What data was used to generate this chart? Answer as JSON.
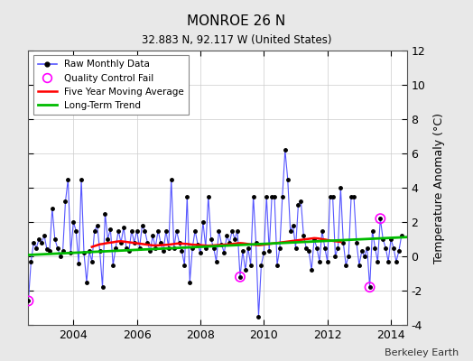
{
  "title": "MONROE 26 N",
  "subtitle": "32.883 N, 92.117 W (United States)",
  "ylabel": "Temperature Anomaly (°C)",
  "credit": "Berkeley Earth",
  "background_color": "#e8e8e8",
  "plot_bg_color": "#ffffff",
  "ylim": [
    -4,
    12
  ],
  "yticks": [
    -4,
    -2,
    0,
    2,
    4,
    6,
    8,
    10,
    12
  ],
  "start_year": 2002.583,
  "end_year": 2014.5,
  "xticks": [
    2004,
    2006,
    2008,
    2010,
    2012,
    2014
  ],
  "raw_color": "#5555ff",
  "raw_marker_color": "#000000",
  "ma_color": "#ff0000",
  "trend_color": "#00bb00",
  "qc_color": "#ff00ff",
  "raw_data": [
    [
      2002.583,
      -2.6
    ],
    [
      2002.667,
      -0.3
    ],
    [
      2002.75,
      0.8
    ],
    [
      2002.833,
      0.5
    ],
    [
      2002.917,
      1.0
    ],
    [
      2003.0,
      0.8
    ],
    [
      2003.083,
      1.2
    ],
    [
      2003.167,
      0.4
    ],
    [
      2003.25,
      0.3
    ],
    [
      2003.333,
      2.8
    ],
    [
      2003.417,
      1.0
    ],
    [
      2003.5,
      0.5
    ],
    [
      2003.583,
      0.0
    ],
    [
      2003.667,
      0.3
    ],
    [
      2003.75,
      3.2
    ],
    [
      2003.833,
      4.5
    ],
    [
      2003.917,
      0.2
    ],
    [
      2004.0,
      2.0
    ],
    [
      2004.083,
      1.5
    ],
    [
      2004.167,
      -0.4
    ],
    [
      2004.25,
      4.5
    ],
    [
      2004.333,
      0.2
    ],
    [
      2004.417,
      -1.5
    ],
    [
      2004.5,
      0.3
    ],
    [
      2004.583,
      -0.3
    ],
    [
      2004.667,
      1.5
    ],
    [
      2004.75,
      1.8
    ],
    [
      2004.833,
      0.3
    ],
    [
      2004.917,
      -1.8
    ],
    [
      2005.0,
      2.5
    ],
    [
      2005.083,
      1.0
    ],
    [
      2005.167,
      1.6
    ],
    [
      2005.25,
      -0.5
    ],
    [
      2005.333,
      0.5
    ],
    [
      2005.417,
      1.5
    ],
    [
      2005.5,
      0.8
    ],
    [
      2005.583,
      1.7
    ],
    [
      2005.667,
      0.5
    ],
    [
      2005.75,
      0.3
    ],
    [
      2005.833,
      1.5
    ],
    [
      2005.917,
      0.8
    ],
    [
      2006.0,
      1.5
    ],
    [
      2006.083,
      0.5
    ],
    [
      2006.167,
      1.8
    ],
    [
      2006.25,
      1.5
    ],
    [
      2006.333,
      0.8
    ],
    [
      2006.417,
      0.3
    ],
    [
      2006.5,
      1.2
    ],
    [
      2006.583,
      0.5
    ],
    [
      2006.667,
      1.5
    ],
    [
      2006.75,
      0.8
    ],
    [
      2006.833,
      0.3
    ],
    [
      2006.917,
      1.5
    ],
    [
      2007.0,
      0.5
    ],
    [
      2007.083,
      4.5
    ],
    [
      2007.167,
      0.5
    ],
    [
      2007.25,
      1.5
    ],
    [
      2007.333,
      0.8
    ],
    [
      2007.417,
      0.3
    ],
    [
      2007.5,
      -0.5
    ],
    [
      2007.583,
      3.5
    ],
    [
      2007.667,
      -1.5
    ],
    [
      2007.75,
      0.5
    ],
    [
      2007.833,
      1.5
    ],
    [
      2007.917,
      0.7
    ],
    [
      2008.0,
      0.2
    ],
    [
      2008.083,
      2.0
    ],
    [
      2008.167,
      0.5
    ],
    [
      2008.25,
      3.5
    ],
    [
      2008.333,
      1.0
    ],
    [
      2008.417,
      0.5
    ],
    [
      2008.5,
      -0.3
    ],
    [
      2008.583,
      1.5
    ],
    [
      2008.667,
      0.7
    ],
    [
      2008.75,
      0.2
    ],
    [
      2008.833,
      1.2
    ],
    [
      2008.917,
      0.8
    ],
    [
      2009.0,
      1.5
    ],
    [
      2009.083,
      1.0
    ],
    [
      2009.167,
      1.5
    ],
    [
      2009.25,
      -1.2
    ],
    [
      2009.333,
      0.3
    ],
    [
      2009.417,
      -0.8
    ],
    [
      2009.5,
      0.5
    ],
    [
      2009.583,
      -0.5
    ],
    [
      2009.667,
      3.5
    ],
    [
      2009.75,
      0.8
    ],
    [
      2009.833,
      -3.5
    ],
    [
      2009.917,
      -0.5
    ],
    [
      2010.0,
      0.2
    ],
    [
      2010.083,
      3.5
    ],
    [
      2010.167,
      0.3
    ],
    [
      2010.25,
      3.5
    ],
    [
      2010.333,
      3.5
    ],
    [
      2010.417,
      -0.5
    ],
    [
      2010.5,
      0.5
    ],
    [
      2010.583,
      3.5
    ],
    [
      2010.667,
      6.2
    ],
    [
      2010.75,
      4.5
    ],
    [
      2010.833,
      1.5
    ],
    [
      2010.917,
      1.8
    ],
    [
      2011.0,
      0.5
    ],
    [
      2011.083,
      3.0
    ],
    [
      2011.167,
      3.2
    ],
    [
      2011.25,
      1.2
    ],
    [
      2011.333,
      0.5
    ],
    [
      2011.417,
      0.3
    ],
    [
      2011.5,
      -0.8
    ],
    [
      2011.583,
      1.0
    ],
    [
      2011.667,
      0.5
    ],
    [
      2011.75,
      -0.3
    ],
    [
      2011.833,
      1.5
    ],
    [
      2011.917,
      0.5
    ],
    [
      2012.0,
      -0.3
    ],
    [
      2012.083,
      3.5
    ],
    [
      2012.167,
      3.5
    ],
    [
      2012.25,
      0.0
    ],
    [
      2012.333,
      0.5
    ],
    [
      2012.417,
      4.0
    ],
    [
      2012.5,
      0.8
    ],
    [
      2012.583,
      -0.5
    ],
    [
      2012.667,
      0.0
    ],
    [
      2012.75,
      3.5
    ],
    [
      2012.833,
      3.5
    ],
    [
      2012.917,
      0.8
    ],
    [
      2013.0,
      -0.5
    ],
    [
      2013.083,
      0.3
    ],
    [
      2013.167,
      0.0
    ],
    [
      2013.25,
      0.5
    ],
    [
      2013.333,
      -1.8
    ],
    [
      2013.417,
      1.5
    ],
    [
      2013.5,
      0.5
    ],
    [
      2013.583,
      -0.3
    ],
    [
      2013.667,
      2.2
    ],
    [
      2013.75,
      1.0
    ],
    [
      2013.833,
      0.5
    ],
    [
      2013.917,
      -0.3
    ],
    [
      2014.0,
      1.0
    ],
    [
      2014.083,
      0.5
    ],
    [
      2014.167,
      -0.3
    ],
    [
      2014.25,
      0.3
    ],
    [
      2014.333,
      1.2
    ]
  ],
  "qc_fail_points": [
    [
      2002.583,
      -2.6
    ],
    [
      2009.25,
      -1.2
    ],
    [
      2013.333,
      -1.8
    ],
    [
      2013.667,
      2.2
    ]
  ],
  "moving_avg": [
    [
      2004.583,
      0.55
    ],
    [
      2004.667,
      0.6
    ],
    [
      2004.75,
      0.65
    ],
    [
      2004.833,
      0.7
    ],
    [
      2004.917,
      0.72
    ],
    [
      2005.0,
      0.75
    ],
    [
      2005.083,
      0.78
    ],
    [
      2005.167,
      0.8
    ],
    [
      2005.25,
      0.82
    ],
    [
      2005.333,
      0.85
    ],
    [
      2005.417,
      0.87
    ],
    [
      2005.5,
      0.88
    ],
    [
      2005.583,
      0.86
    ],
    [
      2005.667,
      0.84
    ],
    [
      2005.75,
      0.82
    ],
    [
      2005.833,
      0.8
    ],
    [
      2005.917,
      0.78
    ],
    [
      2006.0,
      0.76
    ],
    [
      2006.083,
      0.74
    ],
    [
      2006.167,
      0.72
    ],
    [
      2006.25,
      0.7
    ],
    [
      2006.333,
      0.68
    ],
    [
      2006.417,
      0.66
    ],
    [
      2006.5,
      0.64
    ],
    [
      2006.583,
      0.63
    ],
    [
      2006.667,
      0.64
    ],
    [
      2006.75,
      0.65
    ],
    [
      2006.833,
      0.66
    ],
    [
      2006.917,
      0.67
    ],
    [
      2007.0,
      0.68
    ],
    [
      2007.083,
      0.7
    ],
    [
      2007.167,
      0.72
    ],
    [
      2007.25,
      0.74
    ],
    [
      2007.333,
      0.75
    ],
    [
      2007.417,
      0.74
    ],
    [
      2007.5,
      0.73
    ],
    [
      2007.583,
      0.72
    ],
    [
      2007.667,
      0.7
    ],
    [
      2007.75,
      0.68
    ],
    [
      2007.833,
      0.67
    ],
    [
      2007.917,
      0.66
    ],
    [
      2008.0,
      0.65
    ],
    [
      2008.083,
      0.64
    ],
    [
      2008.167,
      0.63
    ],
    [
      2008.25,
      0.62
    ],
    [
      2008.333,
      0.63
    ],
    [
      2008.417,
      0.64
    ],
    [
      2008.5,
      0.65
    ],
    [
      2008.583,
      0.66
    ],
    [
      2008.667,
      0.67
    ],
    [
      2008.75,
      0.68
    ],
    [
      2008.833,
      0.69
    ],
    [
      2008.917,
      0.7
    ],
    [
      2009.0,
      0.72
    ],
    [
      2009.083,
      0.74
    ],
    [
      2009.167,
      0.76
    ],
    [
      2009.25,
      0.77
    ],
    [
      2009.333,
      0.76
    ],
    [
      2009.417,
      0.74
    ],
    [
      2009.5,
      0.72
    ],
    [
      2009.583,
      0.7
    ],
    [
      2009.667,
      0.68
    ],
    [
      2009.75,
      0.66
    ],
    [
      2009.833,
      0.65
    ],
    [
      2009.917,
      0.66
    ],
    [
      2010.0,
      0.68
    ],
    [
      2010.083,
      0.7
    ],
    [
      2010.167,
      0.72
    ],
    [
      2010.25,
      0.74
    ],
    [
      2010.333,
      0.76
    ],
    [
      2010.417,
      0.78
    ],
    [
      2010.5,
      0.8
    ],
    [
      2010.583,
      0.82
    ],
    [
      2010.667,
      0.84
    ],
    [
      2010.75,
      0.86
    ],
    [
      2010.833,
      0.88
    ],
    [
      2010.917,
      0.9
    ],
    [
      2011.0,
      0.92
    ],
    [
      2011.083,
      0.94
    ],
    [
      2011.167,
      0.96
    ],
    [
      2011.25,
      0.98
    ],
    [
      2011.333,
      1.0
    ],
    [
      2011.417,
      1.02
    ],
    [
      2011.5,
      1.04
    ],
    [
      2011.583,
      1.06
    ],
    [
      2011.667,
      1.05
    ],
    [
      2011.75,
      1.03
    ],
    [
      2011.833,
      1.0
    ],
    [
      2011.917,
      0.98
    ],
    [
      2012.0,
      0.95
    ],
    [
      2012.083,
      0.92
    ],
    [
      2012.167,
      0.9
    ],
    [
      2012.25,
      0.88
    ],
    [
      2012.333,
      0.86
    ],
    [
      2012.417,
      0.84
    ]
  ],
  "trend_line": [
    [
      2002.583,
      0.08
    ],
    [
      2014.5,
      1.12
    ]
  ]
}
